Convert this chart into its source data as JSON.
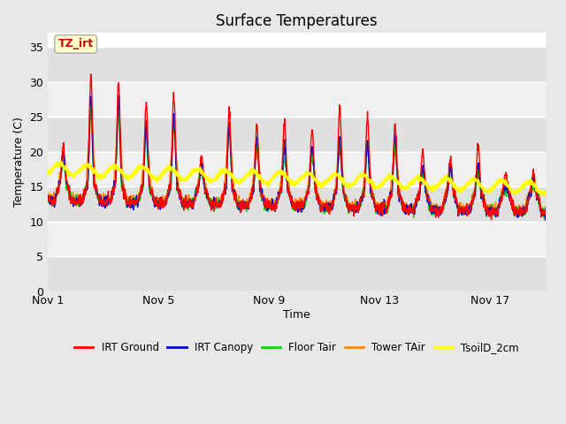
{
  "title": "Surface Temperatures",
  "xlabel": "Time",
  "ylabel": "Temperature (C)",
  "ylim": [
    0,
    37
  ],
  "yticks": [
    0,
    5,
    10,
    15,
    20,
    25,
    30,
    35
  ],
  "xtick_labels": [
    "Nov 1",
    "Nov 5",
    "Nov 9",
    "Nov 13",
    "Nov 17"
  ],
  "xtick_positions": [
    0,
    4,
    8,
    12,
    16
  ],
  "annotation_text": "TZ_irt",
  "annotation_bgcolor": "#ffffcc",
  "annotation_edgecolor": "#aaaaaa",
  "annotation_textcolor": "#cc0000",
  "legend_entries": [
    "IRT Ground",
    "IRT Canopy",
    "Floor Tair",
    "Tower TAir",
    "TsoilD_2cm"
  ],
  "line_colors": [
    "#ff0000",
    "#0000cc",
    "#00dd00",
    "#ff8800",
    "#ffff00"
  ],
  "fig_bg_color": "#e8e8e8",
  "plot_bg_color": "#ffffff",
  "band_colors": [
    "#e0e0e0",
    "#f0f0f0"
  ],
  "band_edges": [
    0,
    5,
    10,
    15,
    20,
    25,
    30,
    35
  ],
  "n_days": 18,
  "pts_per_day": 96,
  "seed": 42
}
